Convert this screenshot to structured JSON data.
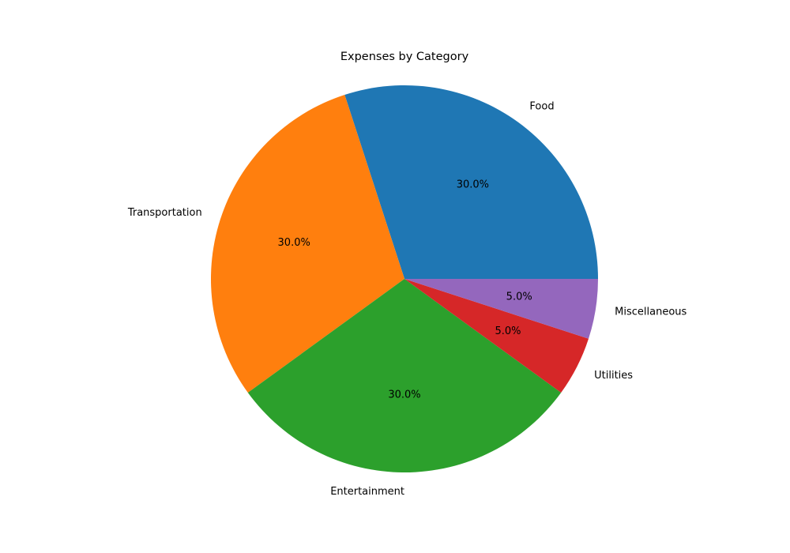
{
  "chart_data": {
    "type": "pie",
    "title": "Expenses by Category",
    "categories": [
      "Food",
      "Transportation",
      "Entertainment",
      "Utilities",
      "Miscellaneous"
    ],
    "values": [
      30,
      30,
      30,
      5,
      5
    ],
    "percent_labels": [
      "30.0%",
      "30.0%",
      "30.0%",
      "5.0%",
      "5.0%"
    ],
    "colors": [
      "#1f77b4",
      "#ff7f0e",
      "#2ca02c",
      "#d62728",
      "#9467bd"
    ],
    "start_angle_deg": 0,
    "direction": "counterclockwise",
    "legend": "none"
  }
}
